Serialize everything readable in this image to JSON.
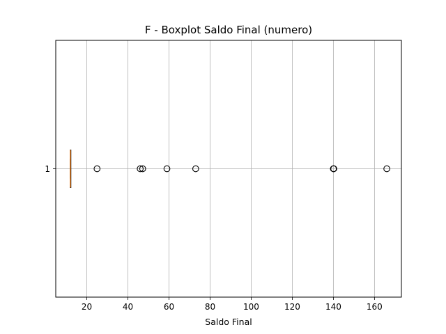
{
  "chart_data": {
    "type": "boxplot",
    "title": "F - Boxplot Saldo Final (numero)",
    "xlabel": "Saldo Final",
    "ylabel": "",
    "orientation": "horizontal",
    "xlim": [
      4.9,
      173.1
    ],
    "x_ticks": [
      20,
      40,
      60,
      80,
      100,
      120,
      140,
      160
    ],
    "y_ticks": [
      "1"
    ],
    "grid": true,
    "series": [
      {
        "category": "1",
        "q1": 12.0,
        "median": 12.0,
        "q3": 12.0,
        "whisker_low": 12.0,
        "whisker_high": 12.0,
        "outliers": [
          25.0,
          46.0,
          47.2,
          59.0,
          73.0,
          140.0,
          140.2,
          166.0
        ]
      }
    ],
    "colors": {
      "median": "#ff7f0e",
      "box": "#000000",
      "grid": "#b0b0b0",
      "outlier_edge": "#000000"
    }
  }
}
